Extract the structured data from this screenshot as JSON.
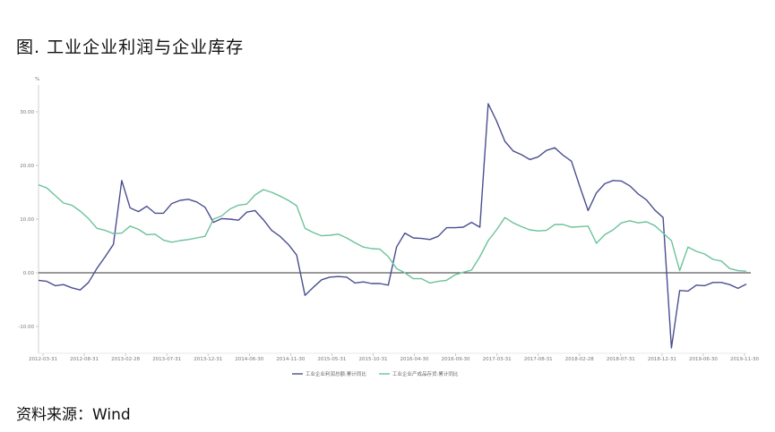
{
  "title": "图. 工业企业利润与企业库存",
  "source": "资料来源：Wind",
  "chart_data": {
    "type": "line",
    "ylabel": "%",
    "ylim": [
      -15,
      35
    ],
    "yticks": [
      -10,
      0,
      10,
      20,
      30
    ],
    "ytick_labels": [
      "-10.00",
      "0.00",
      "10.00",
      "20.00",
      "30.00"
    ],
    "x_tick_labels": [
      "2012-03-31",
      "2012-08-31",
      "2013-02-28",
      "2013-07-31",
      "2013-12-31",
      "2014-06-30",
      "2014-11-30",
      "2015-05-31",
      "2015-10-31",
      "2016-04-30",
      "2016-09-30",
      "2017-03-31",
      "2017-08-31",
      "2018-02-28",
      "2018-07-31",
      "2018-12-31",
      "2019-06-30",
      "2019-11-30"
    ],
    "series": [
      {
        "name": "工业企业利润总额:累计同比",
        "color": "#4a4f8f",
        "values": [
          -1.4,
          -1.6,
          -2.4,
          -2.2,
          -2.8,
          -3.2,
          -1.8,
          0.8,
          3.0,
          5.3,
          17.2,
          12.1,
          11.4,
          12.4,
          11.1,
          11.1,
          12.9,
          13.5,
          13.7,
          13.2,
          12.2,
          9.4,
          10.1,
          10.0,
          9.8,
          11.3,
          11.6,
          9.9,
          7.9,
          6.8,
          5.3,
          3.3,
          -4.2,
          -2.7,
          -1.3,
          -0.8,
          -0.7,
          -0.8,
          -1.9,
          -1.7,
          -2.0,
          -2.0,
          -2.3,
          4.8,
          7.4,
          6.5,
          6.4,
          6.2,
          6.8,
          8.4,
          8.4,
          8.5,
          9.4,
          8.5,
          31.5,
          28.3,
          24.5,
          22.7,
          22.0,
          21.1,
          21.6,
          22.8,
          23.3,
          21.9,
          20.8,
          16.1,
          11.6,
          14.9,
          16.6,
          17.2,
          17.1,
          16.2,
          14.7,
          13.6,
          11.7,
          10.3,
          -14.0,
          -3.3,
          -3.4,
          -2.3,
          -2.4,
          -1.8,
          -1.8,
          -2.2,
          -2.9,
          -2.1
        ]
      },
      {
        "name": "工业企业产成品存货:累计同比",
        "color": "#6cc29a",
        "values": [
          16.4,
          15.8,
          14.4,
          13.0,
          12.6,
          11.5,
          10.1,
          8.3,
          7.9,
          7.3,
          7.4,
          8.7,
          8.1,
          7.1,
          7.2,
          6.1,
          5.7,
          6.0,
          6.2,
          6.5,
          6.8,
          10.0,
          10.6,
          11.9,
          12.6,
          12.8,
          14.5,
          15.5,
          15.0,
          14.3,
          13.5,
          12.5,
          8.3,
          7.5,
          6.9,
          7.0,
          7.2,
          6.5,
          5.6,
          4.8,
          4.5,
          4.4,
          3.0,
          0.8,
          0.0,
          -1.1,
          -1.1,
          -1.9,
          -1.6,
          -1.4,
          -0.4,
          0.1,
          0.5,
          3.0,
          6.0,
          8.0,
          10.3,
          9.3,
          8.6,
          8.0,
          7.8,
          7.9,
          9.0,
          9.0,
          8.5,
          8.6,
          8.7,
          5.5,
          7.1,
          8.0,
          9.3,
          9.7,
          9.3,
          9.5,
          8.8,
          7.4,
          6.0,
          0.4,
          4.8,
          4.0,
          3.5,
          2.5,
          2.2,
          0.8,
          0.4,
          0.3
        ]
      }
    ],
    "legend_position": "bottom",
    "grid": false
  }
}
